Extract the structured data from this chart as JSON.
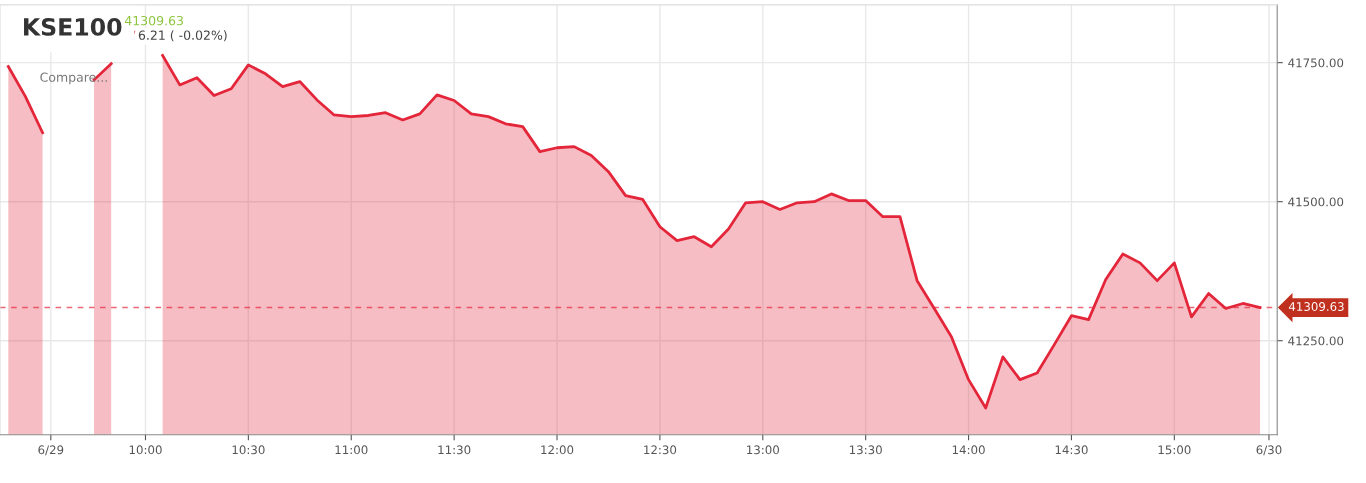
{
  "chart_data": {
    "type": "area",
    "title": "KSE100",
    "subtitle": "41309.63",
    "annotations": [
      "6.21 ( -0.02%)",
      "Compare..."
    ],
    "series": [
      {
        "color": "#e3263a",
        "x": [
          9.3333,
          9.4167,
          9.5,
          9.5833,
          9.6667,
          9.75,
          9.8333,
          9.9167,
          10,
          10.0833,
          10.1667,
          10.25,
          10.3333,
          10.4167,
          10.5,
          10.5833,
          10.6667,
          10.75,
          10.8333,
          10.9167,
          11,
          11.0833,
          11.1667,
          11.25,
          11.3333,
          11.4167,
          11.5,
          11.5833,
          11.6667,
          11.75,
          11.8333,
          11.9167,
          12,
          12.0833,
          12.1667,
          12.25,
          12.3333,
          12.4167,
          12.5,
          12.5833,
          12.6667,
          12.75,
          12.8333,
          12.9167,
          13,
          13.0833,
          13.1667,
          13.25,
          13.3333,
          13.4167,
          13.5,
          13.5833,
          13.6667,
          13.75,
          13.8333,
          13.9167,
          14,
          14.0833,
          14.1667,
          14.25,
          14.3333,
          14.4167,
          14.5,
          14.5833,
          14.6667,
          14.75,
          14.8333,
          14.9167,
          15,
          15.0833,
          15.1667,
          15.25,
          15.3333,
          15.4167
        ],
        "values": [
          41743,
          41689,
          41624,
          null,
          null,
          41719,
          41748,
          null,
          null,
          41763,
          41710,
          41723,
          41691,
          41703,
          41746,
          41730,
          41707,
          41716,
          41683,
          41656,
          41653,
          41655,
          41660,
          41647,
          41658,
          41692,
          41682,
          41658,
          41653,
          41640,
          41635,
          41590,
          41597,
          41599,
          41583,
          41554,
          41511,
          41504,
          41455,
          41430,
          41437,
          41419,
          41451,
          41498,
          41500,
          41486,
          41498,
          41500,
          41514,
          41502,
          41502,
          41473,
          41473,
          41358,
          41308,
          41257,
          41180,
          41129,
          41221,
          41180,
          41192,
          41243,
          41295,
          41288,
          41360,
          41406,
          41390,
          41358,
          41390,
          41293,
          41335,
          41308,
          41317,
          41309.63
        ]
      }
    ],
    "xlim": [
      9.293,
      15.5
    ],
    "ylim": [
      41081,
      41854
    ],
    "xticks": [
      {
        "value": 9.54,
        "label": "6/29"
      },
      {
        "value": 10,
        "label": "10:00"
      },
      {
        "value": 10.5,
        "label": "10:30"
      },
      {
        "value": 11,
        "label": "11:00"
      },
      {
        "value": 11.5,
        "label": "11:30"
      },
      {
        "value": 12,
        "label": "12:00"
      },
      {
        "value": 12.5,
        "label": "12:30"
      },
      {
        "value": 13,
        "label": "13:00"
      },
      {
        "value": 13.5,
        "label": "13:30"
      },
      {
        "value": 14,
        "label": "14:00"
      },
      {
        "value": 14.5,
        "label": "14:30"
      },
      {
        "value": 15,
        "label": "15:00"
      },
      {
        "value": 15.46,
        "label": "6/30"
      }
    ],
    "yticks": [
      {
        "value": 41250,
        "label": "41250.00"
      },
      {
        "value": 41500,
        "label": "41500.00"
      },
      {
        "value": 41750,
        "label": "41750.00"
      }
    ],
    "ref_lines": [
      {
        "axis": "y",
        "value": 41309.63,
        "label": "41309.63",
        "color": "#e3263a",
        "line_style": "dashed"
      }
    ],
    "grid": true
  }
}
